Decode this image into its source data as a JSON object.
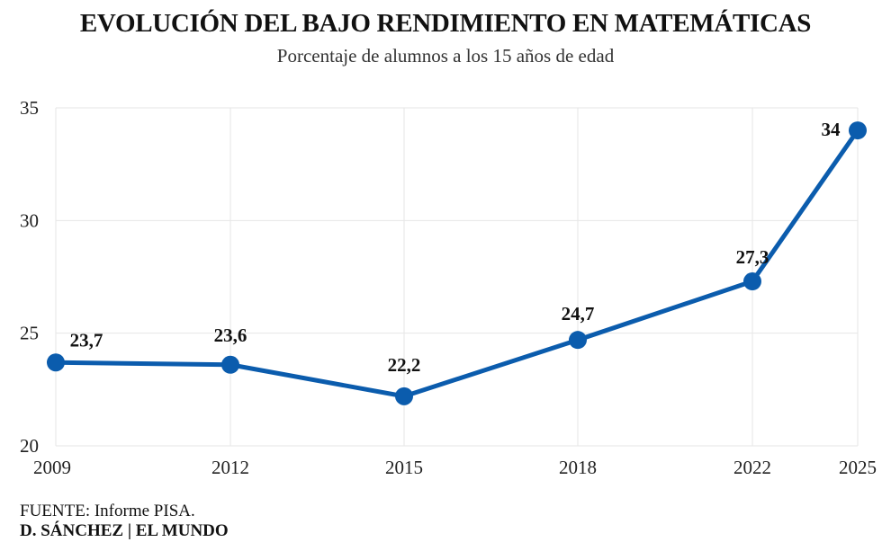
{
  "header": {
    "title": "EVOLUCIÓN DEL BAJO RENDIMIENTO EN MATEMÁTICAS",
    "subtitle": "Porcentaje de alumnos a los 15 años de edad"
  },
  "footer": {
    "source": "FUENTE: Informe PISA.",
    "credit": "D. SÁNCHEZ | EL MUNDO"
  },
  "colors": {
    "line": "#0b5cad",
    "grid": "#e6e6e6",
    "text": "#111111"
  },
  "chart_data": {
    "type": "line",
    "title": "EVOLUCIÓN DEL BAJO RENDIMIENTO EN MATEMÁTICAS",
    "subtitle": "Porcentaje de alumnos a los 15 años de edad",
    "x": [
      2009,
      2012,
      2015,
      2018,
      2022,
      2025
    ],
    "x_tick_labels": [
      "2009",
      "2012",
      "2015",
      "2018",
      "2022",
      "2025"
    ],
    "series": [
      {
        "values": [
          23.7,
          23.6,
          22.2,
          24.7,
          27.3,
          34
        ],
        "data_labels": [
          "23,7",
          "23,6",
          "22,2",
          "24,7",
          "27,3",
          "34"
        ]
      }
    ],
    "ylim": [
      20,
      35
    ],
    "y_ticks": [
      20,
      25,
      30,
      35
    ],
    "y_tick_labels": [
      "20",
      "25",
      "30",
      "35"
    ],
    "grid": true,
    "legend": "none"
  }
}
